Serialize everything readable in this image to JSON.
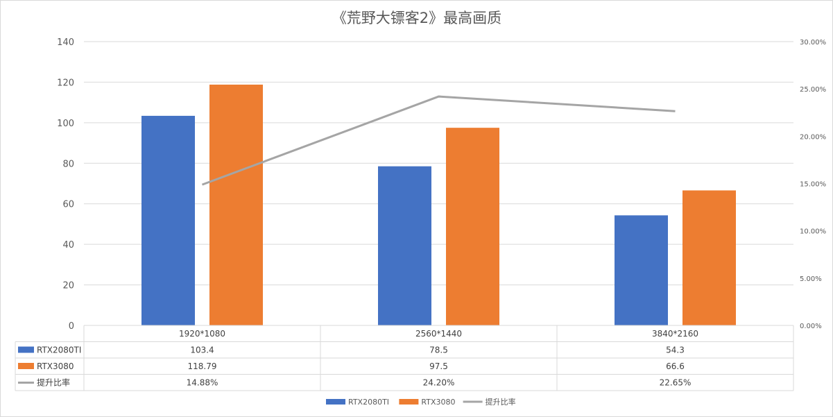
{
  "chart_data": {
    "type": "bar",
    "title": "《荒野大镖客2》最高画质",
    "categories": [
      "1920*1080",
      "2560*1440",
      "3840*2160"
    ],
    "series": [
      {
        "name": "RTX2080TI",
        "type": "bar",
        "axis": "left",
        "values": [
          103.4,
          78.5,
          54.3
        ],
        "labels": [
          "103.4",
          "78.5",
          "54.3"
        ],
        "color": "#4472C4"
      },
      {
        "name": "RTX3080",
        "type": "bar",
        "axis": "left",
        "values": [
          118.79,
          97.5,
          66.6
        ],
        "labels": [
          "118.79",
          "97.5",
          "66.6"
        ],
        "color": "#ED7D31"
      },
      {
        "name": "提升比率",
        "type": "line",
        "axis": "right",
        "values": [
          14.88,
          24.2,
          22.65
        ],
        "labels": [
          "14.88%",
          "24.20%",
          "22.65%"
        ],
        "color": "#A5A5A5"
      }
    ],
    "ylim_left": [
      0,
      140
    ],
    "yticks_left": [
      "0",
      "20",
      "40",
      "60",
      "80",
      "100",
      "120",
      "140"
    ],
    "ylim_right": [
      0,
      30
    ],
    "yticks_right": [
      "0.00%",
      "5.00%",
      "10.00%",
      "15.00%",
      "20.00%",
      "25.00%",
      "30.00%"
    ],
    "grid": true,
    "legend": "bottom",
    "data_table": true
  }
}
